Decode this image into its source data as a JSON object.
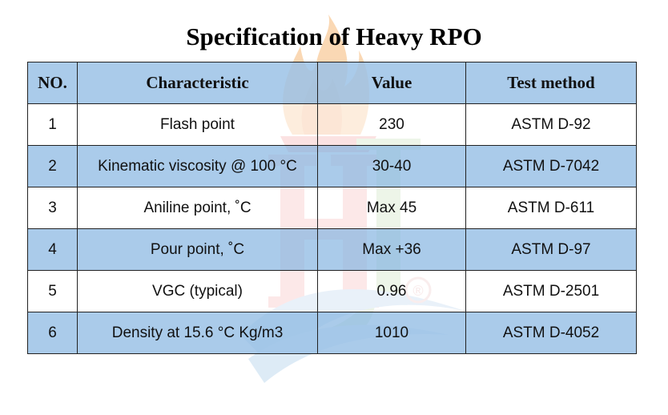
{
  "title": "Specification of Heavy RPO",
  "table": {
    "headers": [
      "NO.",
      "Characteristic",
      "Value",
      "Test method"
    ],
    "rows": [
      [
        "1",
        "Flash point",
        "230",
        "ASTM D-92"
      ],
      [
        "2",
        "Kinematic viscosity @ 100 °C",
        "30-40",
        "ASTM D-7042"
      ],
      [
        "3",
        "Aniline point, ˚C",
        "Max 45",
        "ASTM D-611"
      ],
      [
        "4",
        "Pour point, ˚C",
        "Max +36",
        "ASTM D-97"
      ],
      [
        "5",
        "VGC (typical)",
        "0.96",
        "ASTM D-2501"
      ],
      [
        "6",
        "Density at 15.6 °C Kg/m3",
        "1010",
        "ASTM D-4052"
      ]
    ]
  },
  "colors": {
    "header_fill": "#9bc2e6",
    "row_alt_fill": "#9bc2e6",
    "border": "#222222"
  },
  "watermark": {
    "logo_text": "HJ",
    "registered_mark": "®"
  }
}
